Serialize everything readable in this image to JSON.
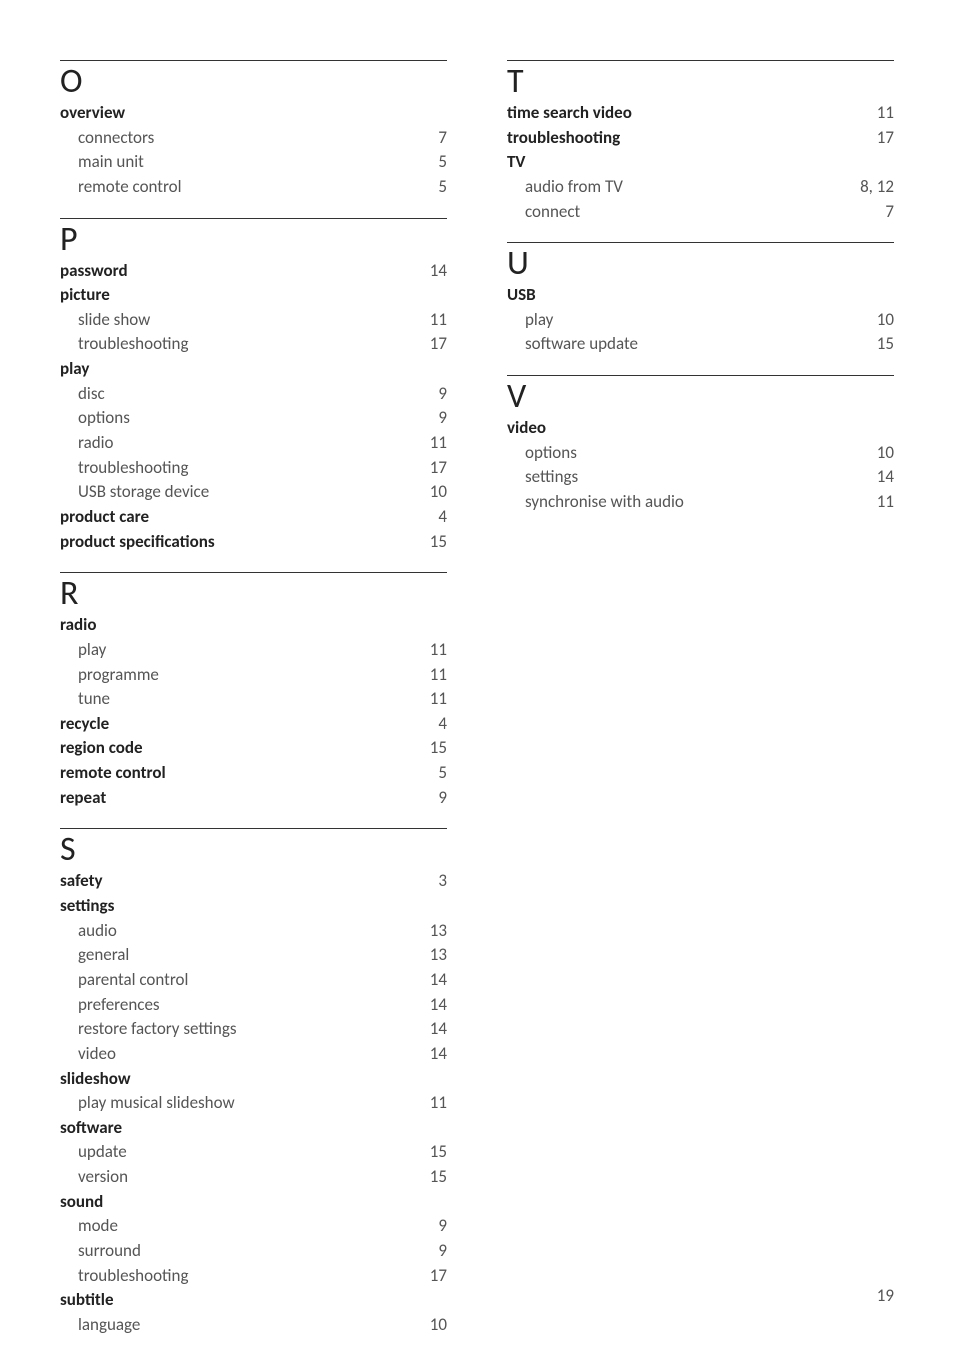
{
  "page_number": "19",
  "columns": [
    {
      "sections": [
        {
          "letter": "O",
          "entries": [
            {
              "label": "overview",
              "type": "heading"
            },
            {
              "label": "connectors",
              "type": "sub",
              "page": "7"
            },
            {
              "label": "main unit",
              "type": "sub",
              "page": "5"
            },
            {
              "label": "remote control",
              "type": "sub",
              "page": "5"
            }
          ]
        },
        {
          "letter": "P",
          "entries": [
            {
              "label": "password",
              "type": "bold",
              "page": "14"
            },
            {
              "label": "picture",
              "type": "heading"
            },
            {
              "label": "slide show",
              "type": "sub",
              "page": "11"
            },
            {
              "label": "troubleshooting",
              "type": "sub",
              "page": "17"
            },
            {
              "label": "play",
              "type": "heading"
            },
            {
              "label": "disc",
              "type": "sub",
              "page": "9"
            },
            {
              "label": "options",
              "type": "sub",
              "page": "9"
            },
            {
              "label": "radio",
              "type": "sub",
              "page": "11"
            },
            {
              "label": "troubleshooting",
              "type": "sub",
              "page": "17"
            },
            {
              "label": "USB storage device",
              "type": "sub",
              "page": "10"
            },
            {
              "label": "product care",
              "type": "bold",
              "page": "4"
            },
            {
              "label": "product specifications",
              "type": "bold",
              "page": "15"
            }
          ]
        },
        {
          "letter": "R",
          "entries": [
            {
              "label": "radio",
              "type": "heading"
            },
            {
              "label": "play",
              "type": "sub",
              "page": "11"
            },
            {
              "label": "programme",
              "type": "sub",
              "page": "11"
            },
            {
              "label": "tune",
              "type": "sub",
              "page": "11"
            },
            {
              "label": "recycle",
              "type": "bold",
              "page": "4"
            },
            {
              "label": "region code",
              "type": "bold",
              "page": "15"
            },
            {
              "label": "remote control",
              "type": "bold",
              "page": "5"
            },
            {
              "label": "repeat",
              "type": "bold",
              "page": "9"
            }
          ]
        },
        {
          "letter": "S",
          "entries": [
            {
              "label": "safety",
              "type": "bold",
              "page": "3"
            },
            {
              "label": "settings",
              "type": "heading"
            },
            {
              "label": "audio",
              "type": "sub",
              "page": "13"
            },
            {
              "label": "general",
              "type": "sub",
              "page": "13"
            },
            {
              "label": "parental control",
              "type": "sub",
              "page": "14"
            },
            {
              "label": "preferences",
              "type": "sub",
              "page": "14"
            },
            {
              "label": "restore factory settings",
              "type": "sub",
              "page": "14"
            },
            {
              "label": "video",
              "type": "sub",
              "page": "14"
            },
            {
              "label": "slideshow",
              "type": "heading"
            },
            {
              "label": "play musical slideshow",
              "type": "sub",
              "page": "11"
            },
            {
              "label": "software",
              "type": "heading"
            },
            {
              "label": "update",
              "type": "sub",
              "page": "15"
            },
            {
              "label": "version",
              "type": "sub",
              "page": "15"
            },
            {
              "label": "sound",
              "type": "heading"
            },
            {
              "label": "mode",
              "type": "sub",
              "page": "9"
            },
            {
              "label": "surround",
              "type": "sub",
              "page": "9"
            },
            {
              "label": "troubleshooting",
              "type": "sub",
              "page": "17"
            },
            {
              "label": "subtitle",
              "type": "heading"
            },
            {
              "label": "language",
              "type": "sub",
              "page": "10"
            }
          ]
        }
      ]
    },
    {
      "sections": [
        {
          "letter": "T",
          "entries": [
            {
              "label": "time search video",
              "type": "bold",
              "page": "11"
            },
            {
              "label": "troubleshooting",
              "type": "bold",
              "page": "17"
            },
            {
              "label": "TV",
              "type": "heading"
            },
            {
              "label": "audio from TV",
              "type": "sub",
              "page": "8, 12"
            },
            {
              "label": "connect",
              "type": "sub",
              "page": "7"
            }
          ]
        },
        {
          "letter": "U",
          "entries": [
            {
              "label": "USB",
              "type": "heading"
            },
            {
              "label": "play",
              "type": "sub",
              "page": "10"
            },
            {
              "label": "software update",
              "type": "sub",
              "page": "15"
            }
          ]
        },
        {
          "letter": "V",
          "entries": [
            {
              "label": "video",
              "type": "heading"
            },
            {
              "label": "options",
              "type": "sub",
              "page": "10"
            },
            {
              "label": "settings",
              "type": "sub",
              "page": "14"
            },
            {
              "label": "synchronise with audio",
              "type": "sub",
              "page": "11"
            }
          ]
        }
      ]
    }
  ]
}
